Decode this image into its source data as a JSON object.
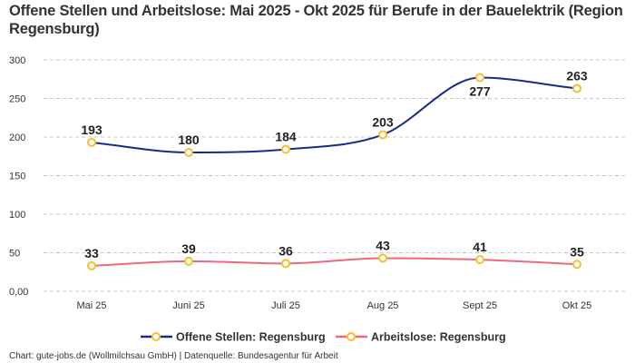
{
  "chart_data": {
    "type": "line",
    "title": "Offene Stellen und Arbeitslose: Mai 2025 - Okt 2025 für Berufe in der Bauelektrik (Region Regensburg)",
    "categories": [
      "Mai 25",
      "Juni 25",
      "Juli 25",
      "Aug 25",
      "Sept 25",
      "Okt 25"
    ],
    "series": [
      {
        "name": "Offene Stellen: Regensburg",
        "values": [
          193,
          180,
          184,
          203,
          277,
          263
        ],
        "color": "#1a2a8c",
        "marker_color": "#f5c02c"
      },
      {
        "name": "Arbeitslose: Regensburg",
        "values": [
          33,
          39,
          36,
          43,
          41,
          35
        ],
        "color": "#f0667f",
        "marker_color": "#f5c02c"
      }
    ],
    "yticks": [
      "0,00",
      "50",
      "100",
      "150",
      "200",
      "250",
      "300"
    ],
    "ylim": [
      0,
      300
    ],
    "grid": true,
    "legend_position": "bottom"
  },
  "footer": "Chart: gute-jobs.de (Wollmilchsau GmbH) | Datenquelle: Bundesagentur für Arbeit"
}
